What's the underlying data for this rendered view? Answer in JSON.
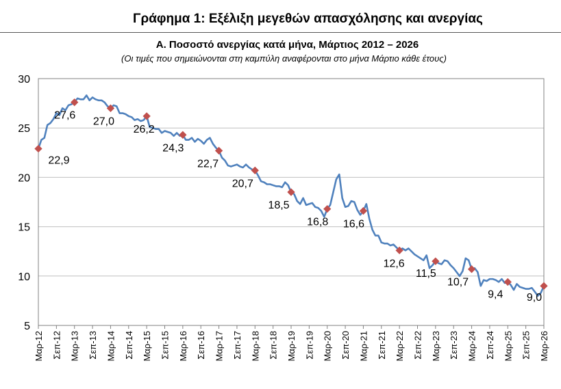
{
  "header": {
    "main_title": "Γράφημα 1: Εξέλιξη μεγεθών απασχόλησης και ανεργίας",
    "subtitle": "Α. Ποσοστό ανεργίας κατά μήνα, Μάρτιος 2012 – 2026",
    "note": "(Οι τιμές που σημειώνονται στη καμπύλη αναφέρονται στο μήνα Μάρτιο κάθε έτους)"
  },
  "chart_data": {
    "type": "line",
    "title": "Α. Ποσοστό ανεργίας κατά μήνα, Μάρτιος 2012 – 2026",
    "xlabel": "",
    "ylabel": "",
    "ylim": [
      5,
      30
    ],
    "yticks": [
      5,
      10,
      15,
      20,
      25,
      30
    ],
    "grid": true,
    "legend": "none",
    "x_tick_labels": [
      "Μαρ-12",
      "Σεπ-12",
      "Μαρ-13",
      "Σεπ-13",
      "Μαρ-14",
      "Σεπ-14",
      "Μαρ-15",
      "Σεπ-15",
      "Μαρ-16",
      "Σεπ-16",
      "Μαρ-17",
      "Σεπ-17",
      "Μαρ-18",
      "Σεπ-18",
      "Μαρ-19",
      "Σεπ-19",
      "Μαρ-20",
      "Σεπ-20",
      "Μαρ-21",
      "Σεπ-21",
      "Μαρ-22",
      "Σεπ-22",
      "Μαρ-23",
      "Σεπ-23",
      "Μαρ-24",
      "Σεπ-24",
      "Μαρ-25",
      "Σεπ-25",
      "Μαρ-26"
    ],
    "march_points": {
      "labels": [
        "Μαρ-12",
        "Μαρ-13",
        "Μαρ-14",
        "Μαρ-15",
        "Μαρ-16",
        "Μαρ-17",
        "Μαρ-18",
        "Μαρ-19",
        "Μαρ-20",
        "Μαρ-21",
        "Μαρ-22",
        "Μαρ-23",
        "Μαρ-24",
        "Μαρ-25",
        "Μαρ-26"
      ],
      "values": [
        22.9,
        27.6,
        27.0,
        26.2,
        24.3,
        22.7,
        20.7,
        18.5,
        16.8,
        16.6,
        12.6,
        11.5,
        10.7,
        9.4,
        9.0
      ],
      "display": [
        "22,9",
        "27,6",
        "27,0",
        "26,2",
        "24,3",
        "22,7",
        "20,7",
        "18,5",
        "16,8",
        "16,6",
        "12,6",
        "11,5",
        "10,7",
        "9,4",
        "9,0"
      ]
    },
    "series": [
      {
        "values": [
          22.9,
          23.8,
          24.0,
          25.3,
          25.5,
          25.9,
          26.5,
          26.3,
          27.0,
          26.8,
          27.3,
          27.4,
          27.6,
          28.0,
          27.9,
          27.9,
          28.3,
          27.8,
          28.1,
          27.9,
          27.8,
          27.8,
          27.6,
          27.2,
          27.0,
          27.3,
          27.2,
          26.5,
          26.5,
          26.4,
          26.2,
          26.1,
          25.8,
          25.9,
          25.7,
          25.8,
          26.2,
          25.1,
          25.0,
          24.9,
          24.9,
          24.5,
          24.7,
          24.6,
          24.5,
          24.2,
          24.5,
          24.2,
          24.3,
          23.8,
          23.8,
          24.0,
          23.6,
          23.9,
          23.7,
          23.4,
          23.8,
          24.0,
          23.4,
          23.0,
          22.7,
          22.0,
          21.7,
          21.2,
          21.1,
          21.2,
          21.3,
          21.1,
          21.0,
          21.3,
          21.0,
          20.8,
          20.7,
          20.2,
          19.6,
          19.5,
          19.3,
          19.3,
          19.2,
          19.1,
          19.1,
          19.0,
          19.5,
          19.2,
          18.5,
          18.3,
          17.6,
          17.3,
          17.9,
          17.2,
          17.3,
          17.4,
          17.0,
          16.9,
          16.6,
          16.0,
          16.8,
          17.2,
          18.5,
          19.8,
          20.3,
          17.9,
          17.0,
          17.1,
          17.6,
          17.5,
          16.7,
          16.2,
          16.6,
          17.3,
          15.8,
          14.7,
          14.1,
          14.1,
          13.4,
          13.3,
          13.3,
          13.1,
          13.2,
          12.9,
          12.6,
          12.8,
          12.6,
          12.8,
          12.5,
          12.2,
          12.0,
          11.8,
          11.6,
          12.1,
          10.8,
          11.1,
          11.5,
          11.3,
          11.2,
          11.6,
          11.5,
          11.1,
          10.8,
          10.4,
          10.0,
          10.5,
          11.8,
          11.6,
          10.7,
          10.8,
          10.4,
          9.0,
          9.6,
          9.5,
          9.7,
          9.7,
          9.6,
          9.4,
          9.7,
          9.3,
          9.4,
          9.1,
          8.6,
          9.2,
          8.9,
          8.8,
          8.7,
          8.7,
          8.8,
          8.4,
          8.0,
          8.3,
          9.0
        ]
      }
    ]
  },
  "colors": {
    "line": "#4f81bd",
    "marker": "#c0504d",
    "grid": "#bfbfbf",
    "axis": "#808080"
  }
}
